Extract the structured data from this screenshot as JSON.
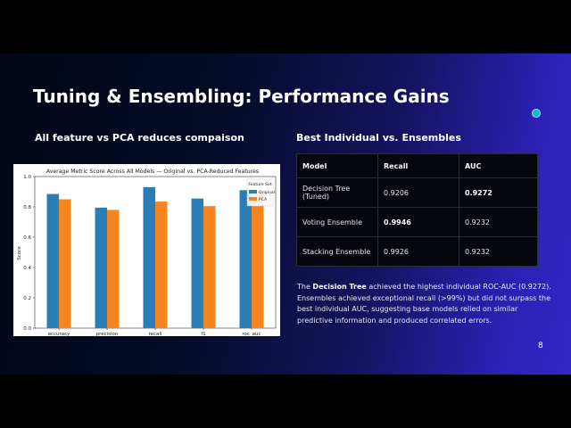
{
  "slide": {
    "title": "Tuning & Ensembling: Performance Gains",
    "left_heading": "All feature vs PCA reduces compaison",
    "right_heading": "Best Individual vs. Ensembles",
    "page_number": "8",
    "accent_dot_color": "#17b3c8"
  },
  "table": {
    "headers": [
      "Model",
      "Recall",
      "AUC"
    ],
    "rows": [
      {
        "model": "Decision Tree (Tuned)",
        "recall": "0.9206",
        "auc": "0.9272"
      },
      {
        "model": "Voting Ensemble",
        "recall": "0.9946",
        "auc": "0.9232"
      },
      {
        "model": "Stacking Ensemble",
        "recall": "0.9926",
        "auc": "0.9232"
      }
    ]
  },
  "paragraph": {
    "prefix": "The ",
    "bold": "Decision Tree",
    "rest": " achieved the highest individual ROC-AUC (0.9272). Ensembles achieved exceptional recall (>99%) but did not surpass the best individual AUC, suggesting base models relied on similar predictive information and produced correlated errors."
  },
  "chart_data": {
    "type": "bar",
    "title": "Average Metric Score Across All Models — Original vs. PCA-Reduced Features",
    "xlabel": "",
    "ylabel": "Score",
    "categories": [
      "accuracy",
      "precision",
      "recall",
      "f1",
      "roc_auc"
    ],
    "series": [
      {
        "name": "Original",
        "color": "#2a7db5",
        "values": [
          0.885,
          0.795,
          0.93,
          0.855,
          0.91
        ]
      },
      {
        "name": "PCA",
        "color": "#f5861f",
        "values": [
          0.85,
          0.78,
          0.835,
          0.805,
          0.9
        ]
      }
    ],
    "ylim": [
      0,
      1.0
    ],
    "yticks": [
      "0.0",
      "0.2",
      "0.4",
      "0.6",
      "0.8",
      "1.0"
    ],
    "legend_title": "Feature Set",
    "legend_position": "top-right",
    "grid": false
  }
}
